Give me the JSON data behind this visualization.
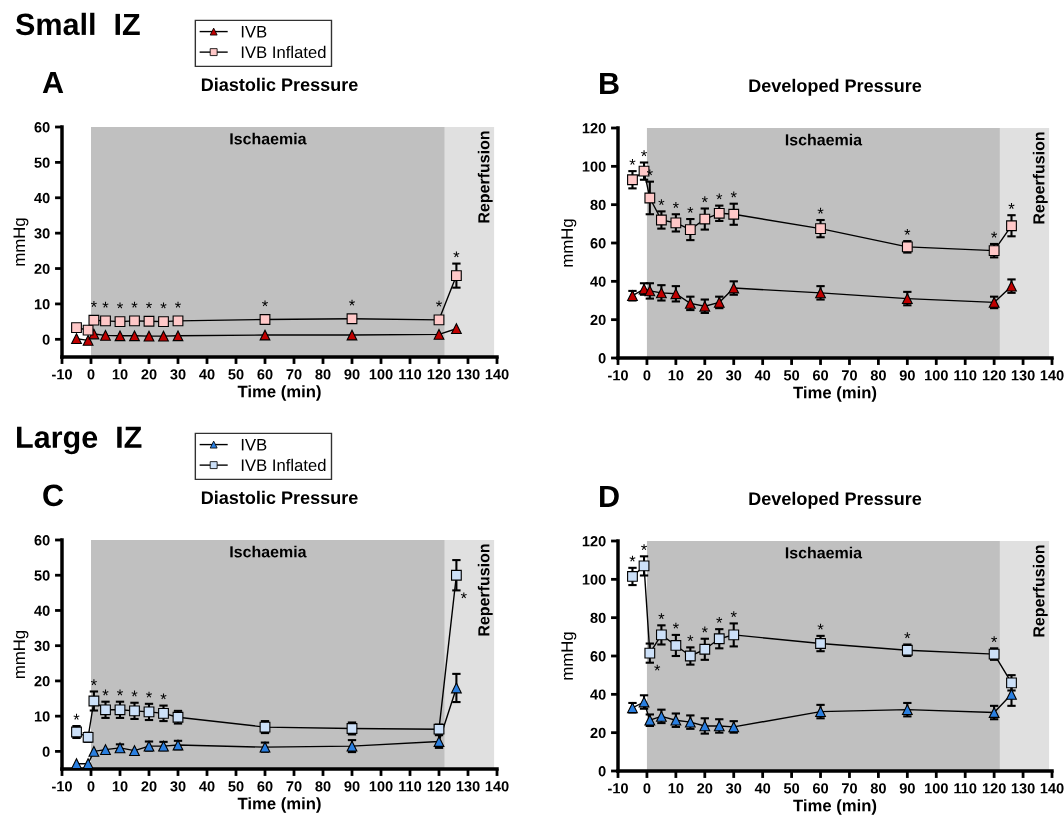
{
  "chart_data": [
    {
      "type": "line",
      "title": "Diastolic Pressure",
      "xlabel": "Time (min)",
      "ylabel": "mmHg",
      "legend": "top left",
      "line_style": "solid",
      "x": [
        -5,
        -1,
        1,
        5,
        10,
        15,
        20,
        25,
        30,
        60,
        90,
        120,
        126
      ],
      "xlim": [
        -10,
        140
      ],
      "xticks": [
        -10,
        0,
        10,
        20,
        30,
        40,
        50,
        60,
        70,
        80,
        90,
        100,
        110,
        120,
        130,
        140
      ],
      "ylim": [
        -5,
        60
      ],
      "yticks": [
        0,
        10,
        20,
        30,
        40,
        50,
        60
      ],
      "bands": [
        {
          "axis": "x",
          "from": 0,
          "to": 122,
          "label": "Ischaemia",
          "color": "#c0c0c0"
        },
        {
          "axis": "x",
          "from": 122,
          "to": 139,
          "label": "Reperfusion",
          "color": "#e0e0e0"
        }
      ],
      "series": [
        {
          "name": "IVB",
          "color": "#c00000",
          "marker": "triangle",
          "values": [
            0.2,
            -0.3,
            1.5,
            1.1,
            1.0,
            1.0,
            0.9,
            0.9,
            1.0,
            1.2,
            1.2,
            1.4,
            3.0
          ],
          "errors": [
            null,
            null,
            null,
            null,
            null,
            null,
            null,
            null,
            null,
            null,
            null,
            null,
            null
          ]
        },
        {
          "name": "IVB Inflated",
          "color": "#ffc8c8",
          "marker": "square",
          "values": [
            3.3,
            2.6,
            5.4,
            5.2,
            5.0,
            5.2,
            5.1,
            5.0,
            5.2,
            5.6,
            5.8,
            5.5,
            18
          ],
          "errors": [
            null,
            null,
            null,
            null,
            null,
            null,
            null,
            null,
            null,
            null,
            null,
            null,
            3.4
          ]
        }
      ],
      "annotations": [
        "A",
        "Small  IZ",
        {
          "text": "*",
          "x": 1,
          "y": 5.4
        },
        {
          "text": "*",
          "x": 5,
          "y": 5.2
        },
        {
          "text": "*",
          "x": 10,
          "y": 5.0
        },
        {
          "text": "*",
          "x": 15,
          "y": 5.2
        },
        {
          "text": "*",
          "x": 20,
          "y": 5.1
        },
        {
          "text": "*",
          "x": 25,
          "y": 5.0
        },
        {
          "text": "*",
          "x": 30,
          "y": 5.2
        },
        {
          "text": "*",
          "x": 60,
          "y": 5.6
        },
        {
          "text": "*",
          "x": 90,
          "y": 5.8
        },
        {
          "text": "*",
          "x": 120,
          "y": 5.5
        },
        {
          "text": "*",
          "x": 126,
          "y": 21.4
        }
      ]
    },
    {
      "type": "line",
      "title": "Developed Pressure",
      "xlabel": "Time (min)",
      "ylabel": "mmHg",
      "line_style": "solid",
      "x": [
        -5,
        -1,
        1,
        5,
        10,
        15,
        20,
        25,
        30,
        60,
        90,
        120,
        126
      ],
      "xlim": [
        -10,
        140
      ],
      "xticks": [
        -10,
        0,
        10,
        20,
        30,
        40,
        50,
        60,
        70,
        80,
        90,
        100,
        110,
        120,
        130,
        140
      ],
      "ylim": [
        0,
        120
      ],
      "yticks": [
        0,
        20,
        40,
        60,
        80,
        100,
        120
      ],
      "bands": [
        {
          "axis": "x",
          "from": 0,
          "to": 122,
          "label": "Ischaemia",
          "color": "#c0c0c0"
        },
        {
          "axis": "x",
          "from": 122,
          "to": 139,
          "label": "Reperfusion",
          "color": "#e0e0e0"
        }
      ],
      "series": [
        {
          "color": "#c00000",
          "marker": "triangle",
          "values": [
            32.5,
            36,
            35,
            34,
            33.5,
            28.5,
            27,
            29,
            36.5,
            34,
            31,
            29,
            37.5
          ],
          "errors": [
            2.5,
            3,
            4,
            4,
            4,
            3.5,
            3.5,
            3,
            3.5,
            3.5,
            3.5,
            3,
            3.5
          ]
        },
        {
          "color": "#ffc8c8",
          "marker": "square",
          "values": [
            93,
            97.5,
            83.5,
            72,
            70.5,
            67,
            72.5,
            75.5,
            75,
            67.5,
            58,
            56,
            69
          ],
          "errors": [
            4.5,
            4.5,
            8.5,
            4.5,
            4.5,
            5.5,
            5.5,
            4,
            5.5,
            4.5,
            3,
            3.5,
            5.5
          ]
        }
      ],
      "annotations": [
        "B",
        {
          "text": "*",
          "x": -5,
          "y": 97.5
        },
        {
          "text": "*",
          "x": -1,
          "y": 102
        },
        {
          "text": "*",
          "x": 1,
          "y": 92
        },
        {
          "text": "*",
          "x": 5,
          "y": 76.5
        },
        {
          "text": "*",
          "x": 10,
          "y": 75
        },
        {
          "text": "*",
          "x": 15,
          "y": 72.5
        },
        {
          "text": "*",
          "x": 20,
          "y": 78
        },
        {
          "text": "*",
          "x": 25,
          "y": 79.5
        },
        {
          "text": "*",
          "x": 30,
          "y": 80.5
        },
        {
          "text": "*",
          "x": 60,
          "y": 72
        },
        {
          "text": "*",
          "x": 90,
          "y": 61
        },
        {
          "text": "*",
          "x": 120,
          "y": 59.5
        },
        {
          "text": "*",
          "x": 126,
          "y": 74.5
        }
      ]
    },
    {
      "type": "line",
      "title": "Diastolic Pressure",
      "xlabel": "Time (min)",
      "ylabel": "mmHg",
      "legend": "top left",
      "line_style": "solid",
      "x": [
        -5,
        -1,
        1,
        5,
        10,
        15,
        20,
        25,
        30,
        60,
        90,
        120,
        126
      ],
      "xlim": [
        -10,
        140
      ],
      "xticks": [
        -10,
        0,
        10,
        20,
        30,
        40,
        50,
        60,
        70,
        80,
        90,
        100,
        110,
        120,
        130,
        140
      ],
      "ylim": [
        -5,
        60
      ],
      "yticks": [
        0,
        10,
        20,
        30,
        40,
        50,
        60
      ],
      "bands": [
        {
          "axis": "x",
          "from": 0,
          "to": 122,
          "label": "Ischaemia",
          "color": "#c0c0c0"
        },
        {
          "axis": "x",
          "from": 122,
          "to": 139,
          "label": "Reperfusion",
          "color": "#e0e0e0"
        }
      ],
      "series": [
        {
          "name": "IVB",
          "color": "#2a7fe0",
          "marker": "triangle",
          "values": [
            -3.5,
            -3.5,
            0,
            0.5,
            1,
            0.2,
            1.5,
            1.5,
            1.8,
            1.2,
            1.5,
            2.8,
            18
          ],
          "errors": [
            null,
            null,
            null,
            null,
            1,
            null,
            1.3,
            1.2,
            1.2,
            1.3,
            1.7,
            1.8,
            4
          ]
        },
        {
          "name": "IVB Inflated",
          "color": "#cce0f8",
          "marker": "square",
          "values": [
            5.5,
            4,
            14.3,
            11.8,
            11.8,
            11.5,
            11.2,
            10.8,
            9.7,
            6.9,
            6.5,
            6.3,
            50
          ],
          "errors": [
            1.7,
            1.3,
            2.7,
            2.3,
            2.3,
            2.3,
            2.3,
            2.2,
            1.8,
            1.7,
            1.7,
            1.3,
            4.3
          ]
        }
      ],
      "annotations": [
        "C",
        "Large  IZ",
        {
          "text": "*",
          "x": -5,
          "y": 7.2
        },
        {
          "text": "*",
          "x": 1,
          "y": 17
        },
        {
          "text": "*",
          "x": 5,
          "y": 14.1
        },
        {
          "text": "*",
          "x": 10,
          "y": 14.1
        },
        {
          "text": "*",
          "x": 15,
          "y": 13.8
        },
        {
          "text": "*",
          "x": 20,
          "y": 13.5
        },
        {
          "text": "*",
          "x": 25,
          "y": 13
        },
        {
          "text": "*",
          "x": 126,
          "y": 45.7
        }
      ]
    },
    {
      "type": "line",
      "title": "Developed Pressure",
      "xlabel": "Time (min)",
      "ylabel": "mmHg",
      "line_style": "solid",
      "x": [
        -5,
        -1,
        1,
        5,
        10,
        15,
        20,
        25,
        30,
        60,
        90,
        120,
        126
      ],
      "xlim": [
        -10,
        140
      ],
      "xticks": [
        -10,
        0,
        10,
        20,
        30,
        40,
        50,
        60,
        70,
        80,
        90,
        100,
        110,
        120,
        130,
        140
      ],
      "ylim": [
        0,
        120
      ],
      "yticks": [
        0,
        20,
        40,
        60,
        80,
        100,
        120
      ],
      "bands": [
        {
          "axis": "x",
          "from": 0,
          "to": 122,
          "label": "Ischaemia",
          "color": "#c0c0c0"
        },
        {
          "axis": "x",
          "from": 122,
          "to": 139,
          "label": "Reperfusion",
          "color": "#e0e0e0"
        }
      ],
      "series": [
        {
          "color": "#2a7fe0",
          "marker": "triangle",
          "values": [
            33,
            36,
            26.5,
            28.5,
            26.5,
            25.5,
            23.5,
            23.5,
            23,
            31,
            32,
            30.5,
            40
          ],
          "errors": [
            2.5,
            3.5,
            3,
            3.5,
            3.5,
            3.5,
            4,
            3.5,
            3,
            3.5,
            3.5,
            3.5,
            6
          ]
        },
        {
          "color": "#cce0f8",
          "marker": "square",
          "values": [
            101.5,
            107,
            61.5,
            71,
            65.5,
            60,
            63.5,
            69,
            71,
            66.5,
            63,
            61,
            46
          ],
          "errors": [
            4.5,
            5,
            5,
            5,
            5.5,
            4.5,
            5.5,
            5,
            6,
            4,
            3,
            3,
            4
          ]
        }
      ],
      "annotations": [
        "D",
        {
          "text": "*",
          "x": -5,
          "y": 106
        },
        {
          "text": "*",
          "x": -1,
          "y": 112
        },
        {
          "text": "*",
          "x": 1,
          "y": 56.5
        },
        {
          "text": "*",
          "x": 5,
          "y": 76
        },
        {
          "text": "*",
          "x": 10,
          "y": 71
        },
        {
          "text": "*",
          "x": 15,
          "y": 64.5
        },
        {
          "text": "*",
          "x": 20,
          "y": 69
        },
        {
          "text": "*",
          "x": 25,
          "y": 74
        },
        {
          "text": "*",
          "x": 30,
          "y": 77
        },
        {
          "text": "*",
          "x": 60,
          "y": 70.5
        },
        {
          "text": "*",
          "x": 90,
          "y": 66
        },
        {
          "text": "*",
          "x": 120,
          "y": 64
        }
      ]
    }
  ]
}
